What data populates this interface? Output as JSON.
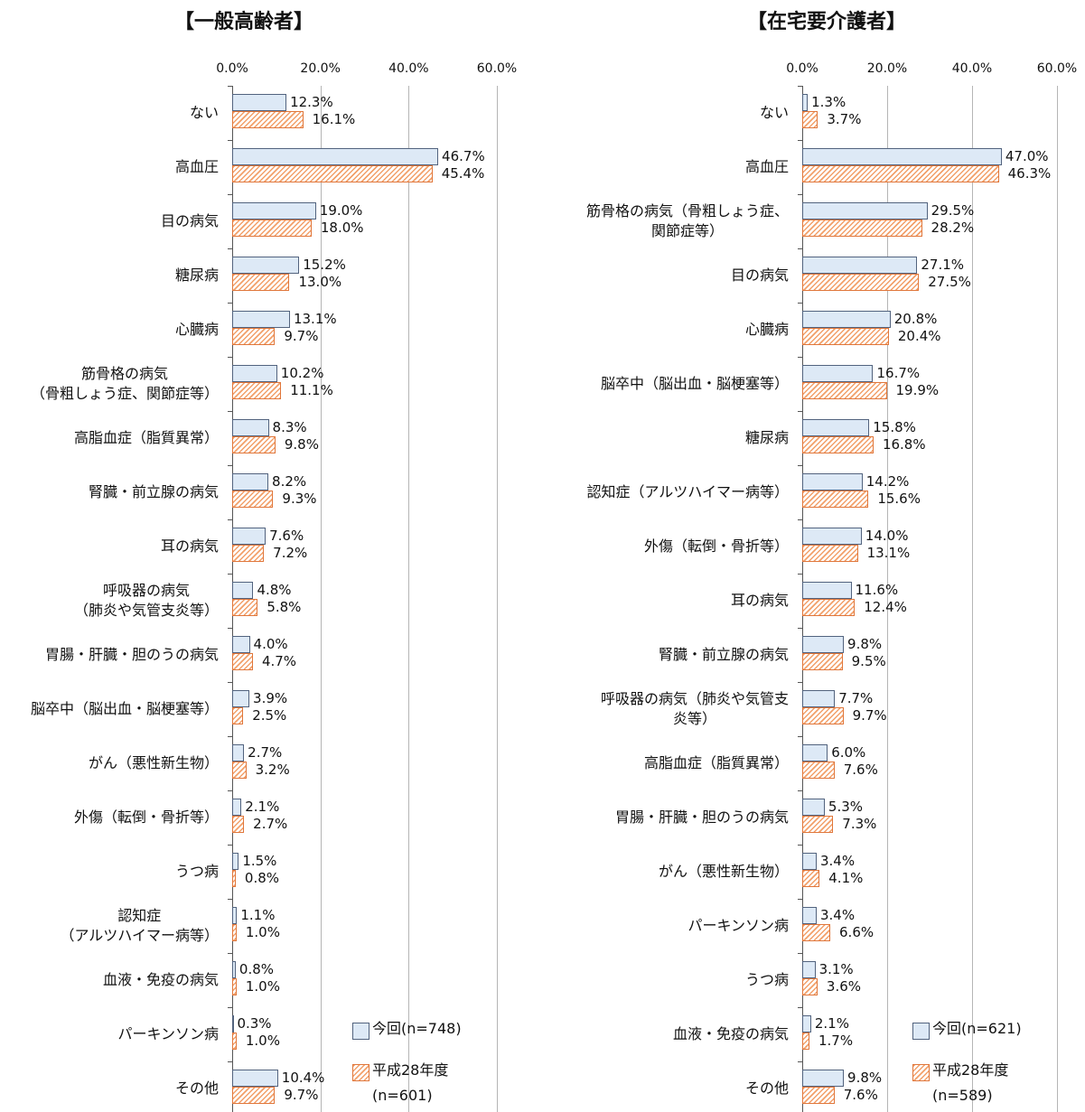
{
  "chart_data": [
    {
      "type": "bar",
      "orientation": "horizontal",
      "title": "【一般高齢者】",
      "categories": [
        "ない",
        "高血圧",
        "目の病気",
        "糖尿病",
        "心臓病",
        "筋骨格の病気\n（骨粗しょう症、関節症等）",
        "高脂血症（脂質異常）",
        "腎臓・前立腺の病気",
        "耳の病気",
        "呼吸器の病気\n（肺炎や気管支炎等）",
        "胃腸・肝臓・胆のうの病気",
        "脳卒中（脳出血・脳梗塞等）",
        "がん（悪性新生物）",
        "外傷（転倒・骨折等）",
        "うつ病",
        "認知症\n（アルツハイマー病等）",
        "血液・免疫の病気",
        "パーキンソン病",
        "その他"
      ],
      "series": [
        {
          "name": "今回(n=748)",
          "color": "#dde9f6",
          "edge": "#52637e",
          "pattern": "solid",
          "values": [
            12.3,
            46.7,
            19.0,
            15.2,
            13.1,
            10.2,
            8.3,
            8.2,
            7.6,
            4.8,
            4.0,
            3.9,
            2.7,
            2.1,
            1.5,
            1.1,
            0.8,
            0.3,
            10.4
          ],
          "value_labels": [
            "12.3%",
            "46.7%",
            "19.0%",
            "15.2%",
            "13.1%",
            "10.2%",
            "8.3%",
            "8.2%",
            "7.6%",
            "4.8%",
            "4.0%",
            "3.9%",
            "2.7%",
            "2.1%",
            "1.5%",
            "1.1%",
            "0.8%",
            "0.3%",
            "10.4%"
          ]
        },
        {
          "name": "平成28年度\n(n=601)",
          "color": "#f2a06a",
          "edge": "#e0763a",
          "pattern": "hatch",
          "values": [
            16.1,
            45.4,
            18.0,
            13.0,
            9.7,
            11.1,
            9.8,
            9.3,
            7.2,
            5.8,
            4.7,
            2.5,
            3.2,
            2.7,
            0.8,
            1.0,
            1.0,
            1.0,
            9.7
          ],
          "value_labels": [
            "16.1%",
            "45.4%",
            "18.0%",
            "13.0%",
            "9.7%",
            "11.1%",
            "9.8%",
            "9.3%",
            "7.2%",
            "5.8%",
            "4.7%",
            "2.5%",
            "3.2%",
            "2.7%",
            "0.8%",
            "1.0%",
            "1.0%",
            "1.0%",
            "9.7%"
          ]
        }
      ],
      "xlim": [
        0,
        60
      ],
      "xticks": [
        {
          "value": 0,
          "label": "0.0%"
        },
        {
          "value": 20,
          "label": "20.0%"
        },
        {
          "value": 40,
          "label": "40.0%"
        },
        {
          "value": 60,
          "label": "60.0%"
        }
      ],
      "grid": true,
      "legend": "lower right"
    },
    {
      "type": "bar",
      "orientation": "horizontal",
      "title": "【在宅要介護者】",
      "categories": [
        "ない",
        "高血圧",
        "筋骨格の病気（骨粗しょう症、\n関節症等）",
        "目の病気",
        "心臓病",
        "脳卒中（脳出血・脳梗塞等）",
        "糖尿病",
        "認知症（アルツハイマー病等）",
        "外傷（転倒・骨折等）",
        "耳の病気",
        "腎臓・前立腺の病気",
        "呼吸器の病気（肺炎や気管支\n炎等）",
        "高脂血症（脂質異常）",
        "胃腸・肝臓・胆のうの病気",
        "がん（悪性新生物）",
        "パーキンソン病",
        "うつ病",
        "血液・免疫の病気",
        "その他"
      ],
      "series": [
        {
          "name": "今回(n=621)",
          "color": "#dde9f6",
          "edge": "#52637e",
          "pattern": "solid",
          "values": [
            1.3,
            47.0,
            29.5,
            27.1,
            20.8,
            16.7,
            15.8,
            14.2,
            14.0,
            11.6,
            9.8,
            7.7,
            6.0,
            5.3,
            3.4,
            3.4,
            3.1,
            2.1,
            9.8
          ],
          "value_labels": [
            "1.3%",
            "47.0%",
            "29.5%",
            "27.1%",
            "20.8%",
            "16.7%",
            "15.8%",
            "14.2%",
            "14.0%",
            "11.6%",
            "9.8%",
            "7.7%",
            "6.0%",
            "5.3%",
            "3.4%",
            "3.4%",
            "3.1%",
            "2.1%",
            "9.8%"
          ]
        },
        {
          "name": "平成28年度\n(n=589)",
          "color": "#f2a06a",
          "edge": "#e0763a",
          "pattern": "hatch",
          "values": [
            3.7,
            46.3,
            28.2,
            27.5,
            20.4,
            19.9,
            16.8,
            15.6,
            13.1,
            12.4,
            9.5,
            9.7,
            7.6,
            7.3,
            4.1,
            6.6,
            3.6,
            1.7,
            7.6
          ],
          "value_labels": [
            "3.7%",
            "46.3%",
            "28.2%",
            "27.5%",
            "20.4%",
            "19.9%",
            "16.8%",
            "15.6%",
            "13.1%",
            "12.4%",
            "9.5%",
            "9.7%",
            "7.6%",
            "7.3%",
            "4.1%",
            "6.6%",
            "3.6%",
            "1.7%",
            "7.6%"
          ]
        }
      ],
      "xlim": [
        0,
        60
      ],
      "xticks": [
        {
          "value": 0,
          "label": "0.0%"
        },
        {
          "value": 20,
          "label": "20.0%"
        },
        {
          "value": 40,
          "label": "40.0%"
        },
        {
          "value": 60,
          "label": "60.0%"
        }
      ],
      "grid": true,
      "legend": "lower right"
    }
  ]
}
